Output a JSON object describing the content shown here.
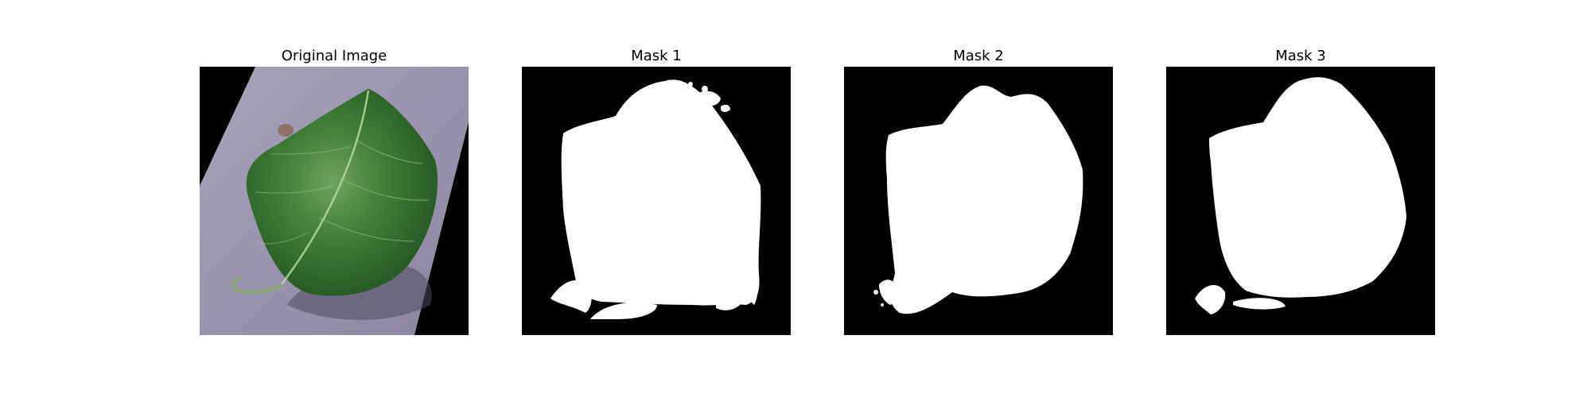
{
  "figure": {
    "panels": [
      {
        "title": "Original Image",
        "content": "photo of a green leaf on a lavender surface, rotated"
      },
      {
        "title": "Mask 1",
        "content": "binary segmentation mask"
      },
      {
        "title": "Mask 2",
        "content": "binary segmentation mask"
      },
      {
        "title": "Mask 3",
        "content": "binary segmentation mask"
      }
    ]
  },
  "colors": {
    "mask_background": "#000000",
    "mask_foreground": "#ffffff",
    "leaf_green": "#3e7b35",
    "surface_lavender": "#9b94ad"
  }
}
